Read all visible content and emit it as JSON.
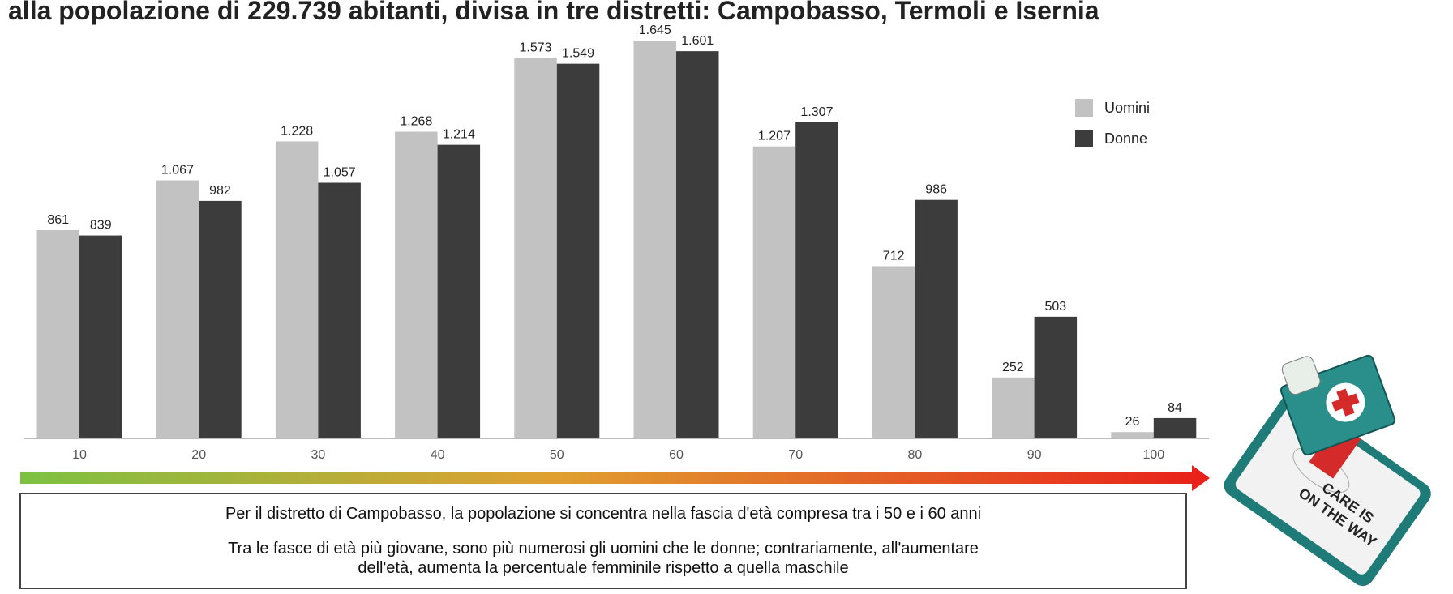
{
  "chart_data": {
    "type": "bar",
    "title": "alla popolazione di 229.739 abitanti, divisa in tre distretti: Campobasso, Termoli e Isernia",
    "categories": [
      "10",
      "20",
      "30",
      "40",
      "50",
      "60",
      "70",
      "80",
      "90",
      "100"
    ],
    "series": [
      {
        "name": "Uomini",
        "color": "#c2c2c2",
        "values": [
          861,
          1067,
          1228,
          1268,
          1573,
          1645,
          1207,
          712,
          252,
          26
        ],
        "value_labels": [
          "861",
          "1.067",
          "1.228",
          "1.268",
          "1.573",
          "1.645",
          "1.207",
          "712",
          "252",
          "26"
        ]
      },
      {
        "name": "Donne",
        "color": "#3c3c3c",
        "values": [
          839,
          982,
          1057,
          1214,
          1549,
          1601,
          1307,
          986,
          503,
          84
        ],
        "value_labels": [
          "839",
          "982",
          "1.057",
          "1.214",
          "1.549",
          "1.601",
          "1.307",
          "986",
          "503",
          "84"
        ]
      }
    ],
    "notes": [
      "Per il distretto di Campobasso, la popolazione si concentra nella fascia d'età compresa tra i 50 e i 60 anni",
      "Tra le fasce di età più giovane, sono più numerosi gli uomini che le donne; contrariamente, all'aumentare",
      "dell'età, aumenta la percentuale femminile rispetto a quella maschile"
    ],
    "badge_text": [
      "CARE IS",
      "ON THE WAY"
    ]
  }
}
